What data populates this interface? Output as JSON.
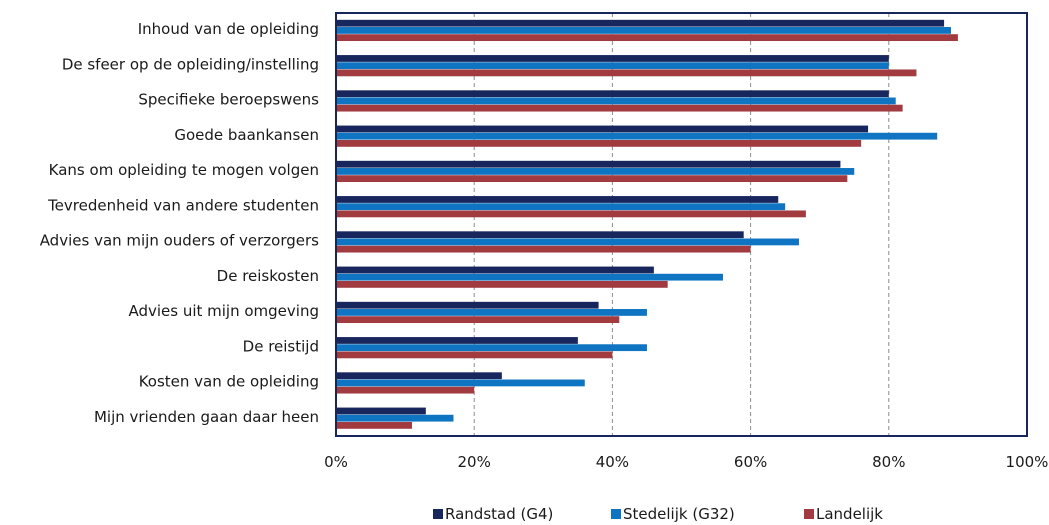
{
  "chart_data": {
    "type": "bar",
    "orientation": "horizontal",
    "categories": [
      "Inhoud van de opleiding",
      "De sfeer op de opleiding/instelling",
      "Specifieke beroepswens",
      "Goede baankansen",
      "Kans om opleiding te mogen volgen",
      "Tevredenheid van andere studenten",
      "Advies van mijn ouders of verzorgers",
      "De reiskosten",
      "Advies uit mijn omgeving",
      "De reistijd",
      "Kosten van de opleiding",
      "Mijn vrienden gaan daar heen"
    ],
    "series": [
      {
        "name": "Randstad (G4)",
        "color": "#17275e",
        "values": [
          88,
          80,
          80,
          77,
          73,
          64,
          59,
          46,
          38,
          35,
          24,
          13
        ]
      },
      {
        "name": "Stedelijk (G32)",
        "color": "#0f74c2",
        "values": [
          89,
          80,
          81,
          87,
          75,
          65,
          67,
          56,
          45,
          45,
          36,
          17
        ]
      },
      {
        "name": "Landelijk",
        "color": "#a23b3f",
        "values": [
          90,
          84,
          82,
          76,
          74,
          68,
          60,
          48,
          41,
          40,
          20,
          11
        ]
      }
    ],
    "xlim": [
      0,
      100
    ],
    "x_ticks": [
      "0%",
      "20%",
      "40%",
      "60%",
      "80%",
      "100%"
    ],
    "x_tick_values": [
      0,
      20,
      40,
      60,
      80,
      100
    ],
    "grid": "vertical-dashed",
    "legend_position": "bottom",
    "title": "",
    "xlabel": "",
    "ylabel": ""
  }
}
